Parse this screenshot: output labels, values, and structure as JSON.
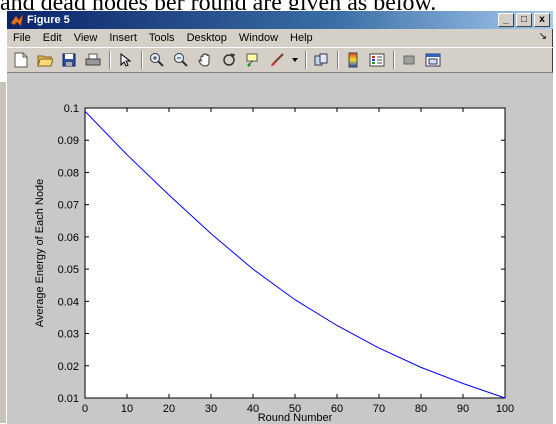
{
  "background_text": "and dead nodes per round are given as below.",
  "window": {
    "title": "Figure 5",
    "minimize_label": "_",
    "maximize_label": "□",
    "close_label": "x"
  },
  "menu": {
    "items": [
      "File",
      "Edit",
      "View",
      "Insert",
      "Tools",
      "Desktop",
      "Window",
      "Help"
    ],
    "arrow": "↘"
  },
  "toolbar": {
    "buttons": [
      "new-figure-icon",
      "open-file-icon",
      "save-icon",
      "print-icon",
      "edit-plot-icon",
      "zoom-in-icon",
      "zoom-out-icon",
      "pan-icon",
      "rotate-3d-icon",
      "data-cursor-icon",
      "brush-icon",
      "link-plot-icon",
      "colorbar-icon",
      "legend-icon",
      "hide-plot-tools-icon",
      "show-plot-tools-icon"
    ]
  },
  "colors": {
    "line": "#0000ff",
    "titlebar_start": "#0a246a",
    "titlebar_end": "#a6caf0"
  },
  "chart_data": {
    "type": "line",
    "title": "",
    "xlabel": "Round Number",
    "ylabel": "Average Energy of Each Node",
    "xlim": [
      0,
      100
    ],
    "ylim": [
      0.01,
      0.1
    ],
    "xticks": [
      0,
      10,
      20,
      30,
      40,
      50,
      60,
      70,
      80,
      90,
      100
    ],
    "yticks": [
      0.01,
      0.02,
      0.03,
      0.04,
      0.05,
      0.06,
      0.07,
      0.08,
      0.09,
      0.1
    ],
    "ytick_labels": [
      "0.01",
      "0.02",
      "0.03",
      "0.04",
      "0.05",
      "0.06",
      "0.07",
      "0.08",
      "0.09",
      "0.1"
    ],
    "grid": false,
    "series": [
      {
        "x": [
          0,
          10,
          20,
          30,
          40,
          50,
          60,
          70,
          80,
          90,
          100
        ],
        "values": [
          0.099,
          0.0855,
          0.073,
          0.061,
          0.05,
          0.0405,
          0.0325,
          0.0255,
          0.0195,
          0.0145,
          0.01
        ]
      }
    ]
  }
}
